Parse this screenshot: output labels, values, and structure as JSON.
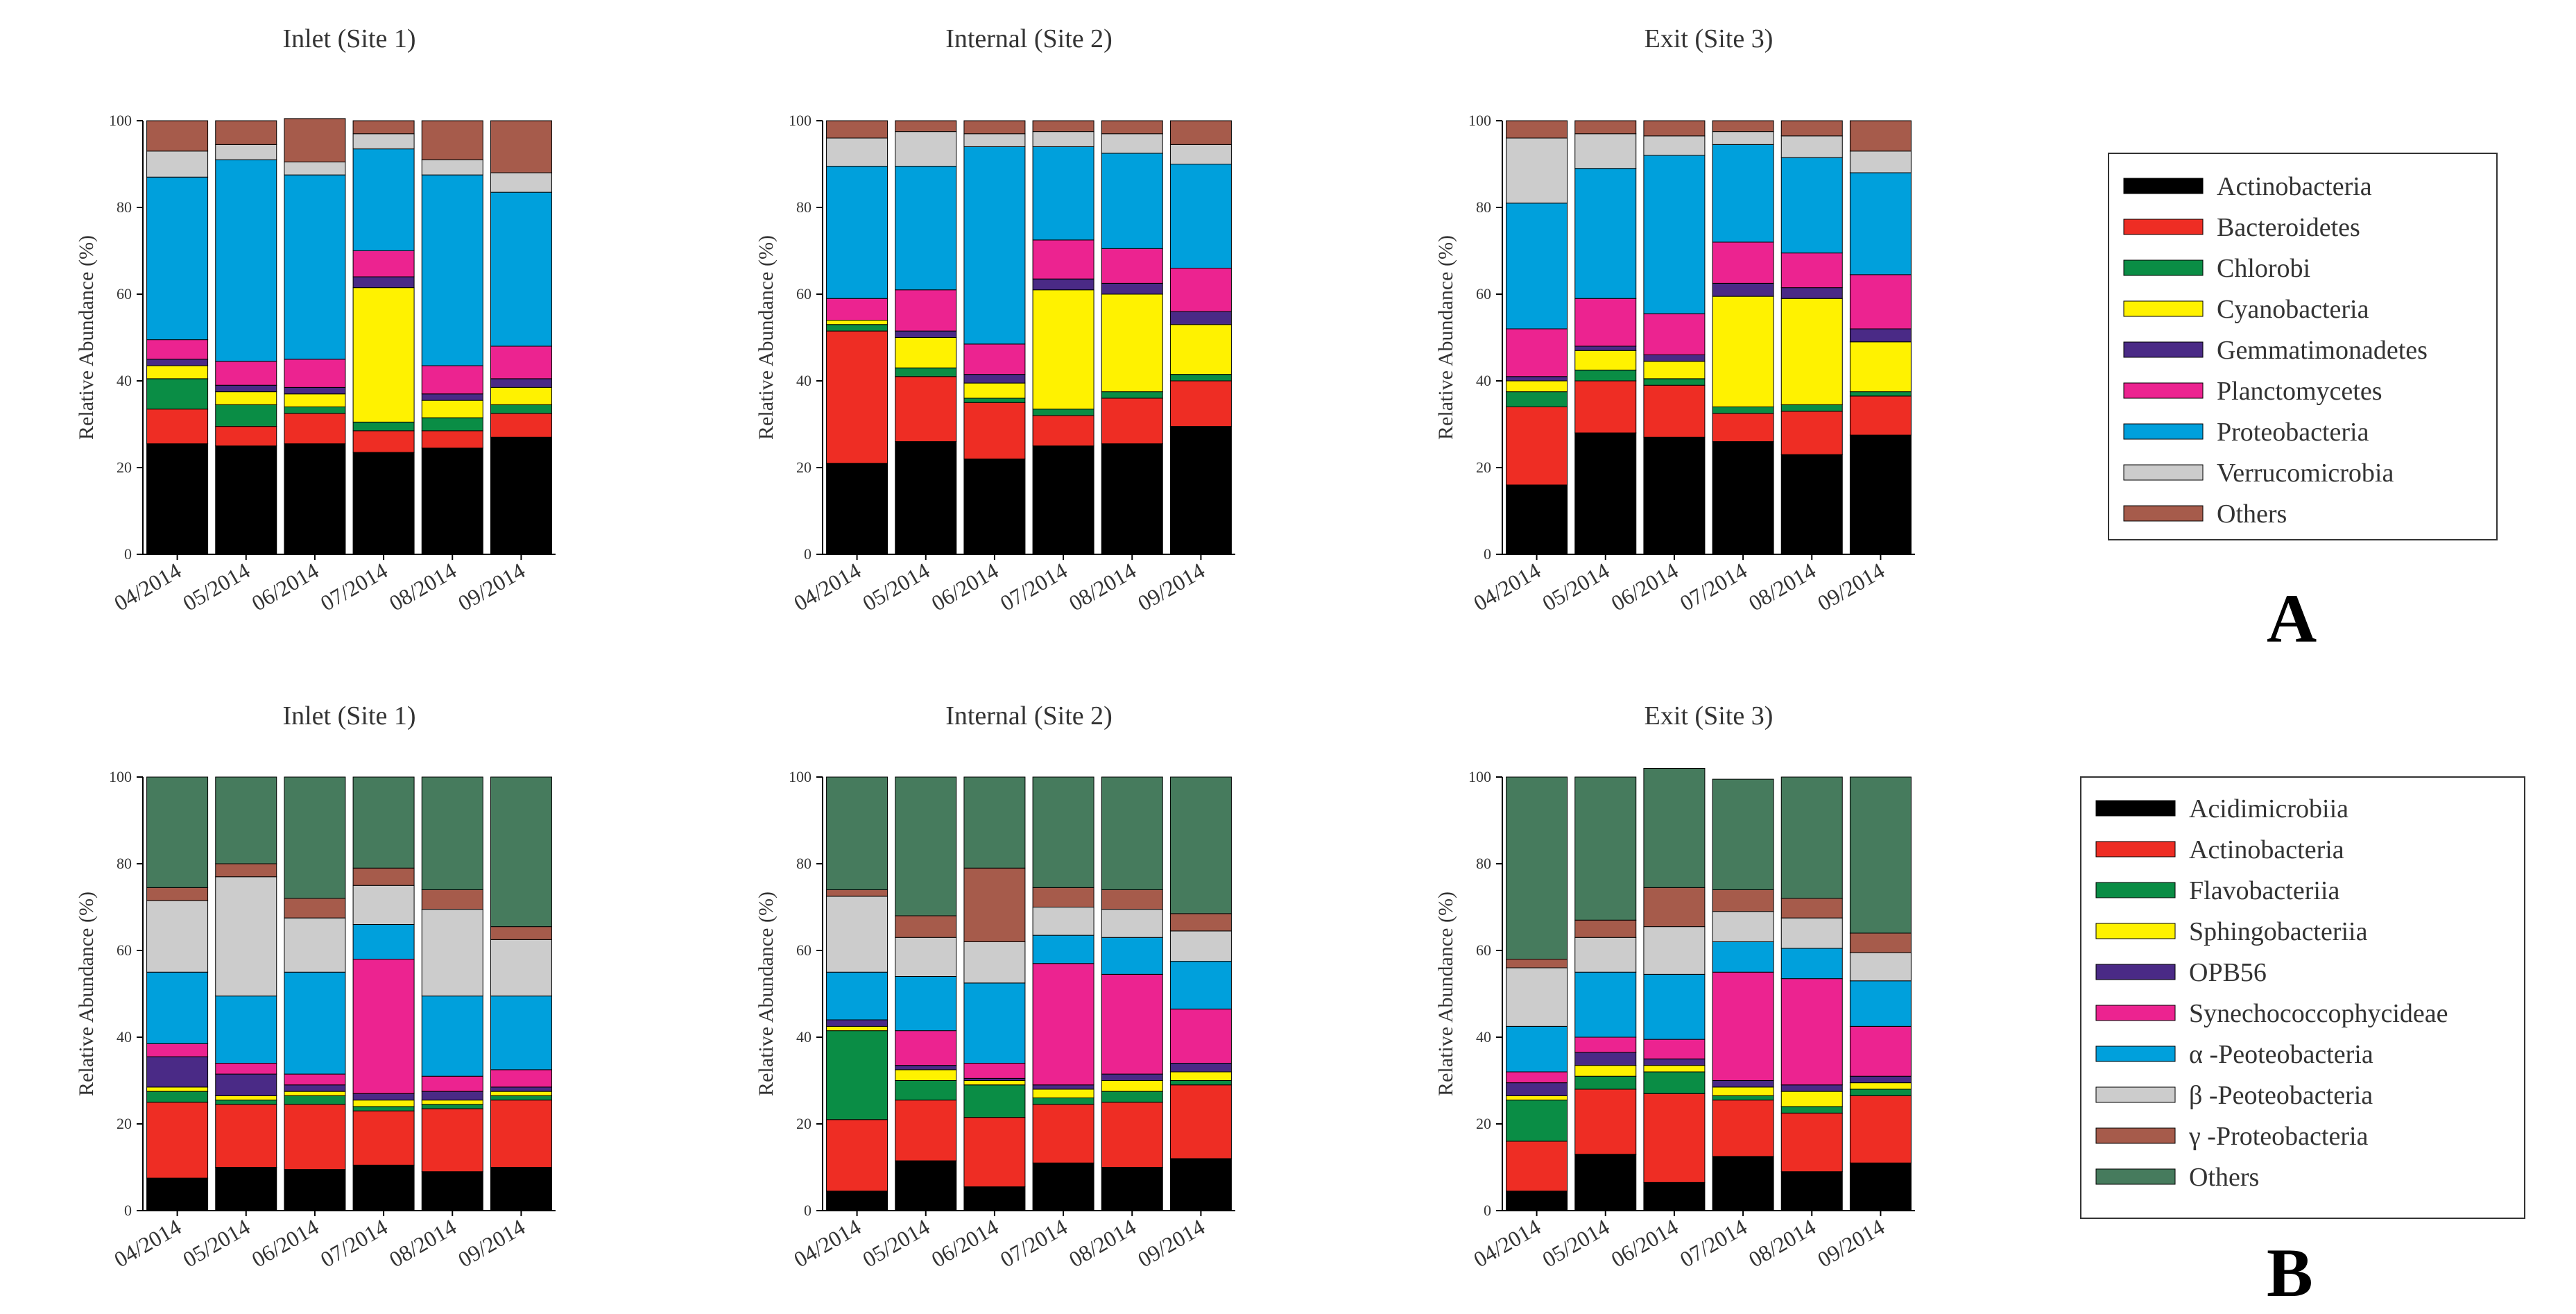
{
  "panel_labels": {
    "a": "A",
    "b": "B"
  },
  "colors": {
    "black": "#000000",
    "red": "#ee2d24",
    "green": "#0a8d45",
    "yellow": "#fff200",
    "purple": "#4a2a86",
    "pink": "#ec2390",
    "blue": "#00a0dc",
    "grey": "#cccccc",
    "brown": "#a65b4b",
    "darkgreen": "#467b5d"
  },
  "legends": {
    "A": {
      "position": "right",
      "entries": [
        {
          "label": "Actinobacteria",
          "color": "#000000"
        },
        {
          "label": "Bacteroidetes",
          "color": "#ee2d24"
        },
        {
          "label": "Chlorobi",
          "color": "#0a8d45"
        },
        {
          "label": "Cyanobacteria",
          "color": "#fff200"
        },
        {
          "label": "Gemmatimonadetes",
          "color": "#4a2a86"
        },
        {
          "label": "Planctomycetes",
          "color": "#ec2390"
        },
        {
          "label": "Proteobacteria",
          "color": "#00a0dc"
        },
        {
          "label": "Verrucomicrobia",
          "color": "#cccccc"
        },
        {
          "label": "Others",
          "color": "#a65b4b"
        }
      ]
    },
    "B": {
      "position": "right",
      "entries": [
        {
          "label": "Acidimicrobiia",
          "color": "#000000"
        },
        {
          "label": "Actinobacteria",
          "color": "#ee2d24"
        },
        {
          "label": "Flavobacteriia",
          "color": "#0a8d45"
        },
        {
          "label": "Sphingobacteriia",
          "color": "#fff200"
        },
        {
          "label": "OPB56",
          "color": "#4a2a86"
        },
        {
          "label": "Synechococcophycideae",
          "color": "#ec2390"
        },
        {
          "label": "α -Peoteobacteria",
          "color": "#00a0dc"
        },
        {
          "label": "β -Peoteobacteria",
          "color": "#cccccc"
        },
        {
          "label": "γ -Proteobacteria",
          "color": "#a65b4b"
        },
        {
          "label": "Others",
          "color": "#467b5d"
        }
      ]
    }
  },
  "chart_data": [
    {
      "type": "bar",
      "stacked": true,
      "row": "A",
      "title": "Inlet (Site 1)",
      "ylabel": "Relative Abundance (%)",
      "ylim": [
        0,
        100
      ],
      "yticks": [
        0,
        20,
        40,
        60,
        80,
        100
      ],
      "categories": [
        "04/2014",
        "05/2014",
        "06/2014",
        "07/2014",
        "08/2014",
        "09/2014"
      ],
      "series": [
        {
          "name": "Actinobacteria",
          "color": "#000000",
          "values": [
            25.5,
            25,
            25.5,
            23.5,
            24.5,
            27
          ]
        },
        {
          "name": "Bacteroidetes",
          "color": "#ee2d24",
          "values": [
            8,
            4.5,
            7,
            5,
            4,
            5.5
          ]
        },
        {
          "name": "Chlorobi",
          "color": "#0a8d45",
          "values": [
            7,
            5,
            1.5,
            2,
            3,
            2
          ]
        },
        {
          "name": "Cyanobacteria",
          "color": "#fff200",
          "values": [
            3,
            3,
            3,
            31,
            4,
            4
          ]
        },
        {
          "name": "Gemmatimonadetes",
          "color": "#4a2a86",
          "values": [
            1.5,
            1.5,
            1.5,
            2.5,
            1.5,
            2
          ]
        },
        {
          "name": "Planctomycetes",
          "color": "#ec2390",
          "values": [
            4.5,
            5.5,
            6.5,
            6,
            6.5,
            7.5
          ]
        },
        {
          "name": "Proteobacteria",
          "color": "#00a0dc",
          "values": [
            37.5,
            46.5,
            42.5,
            23.5,
            44,
            35.5
          ]
        },
        {
          "name": "Verrucomicrobia",
          "color": "#cccccc",
          "values": [
            6,
            3.5,
            3,
            3.5,
            3.5,
            4.5
          ]
        },
        {
          "name": "Others",
          "color": "#a65b4b",
          "values": [
            7,
            5.5,
            10,
            3,
            9,
            12
          ]
        }
      ]
    },
    {
      "type": "bar",
      "stacked": true,
      "row": "A",
      "title": "Internal (Site 2)",
      "ylabel": "Relative Abundance (%)",
      "ylim": [
        0,
        100
      ],
      "yticks": [
        0,
        20,
        40,
        60,
        80,
        100
      ],
      "categories": [
        "04/2014",
        "05/2014",
        "06/2014",
        "07/2014",
        "08/2014",
        "09/2014"
      ],
      "series": [
        {
          "name": "Actinobacteria",
          "color": "#000000",
          "values": [
            21,
            26,
            22,
            25,
            25.5,
            29.5
          ]
        },
        {
          "name": "Bacteroidetes",
          "color": "#ee2d24",
          "values": [
            30.5,
            15,
            13,
            7,
            10.5,
            10.5
          ]
        },
        {
          "name": "Chlorobi",
          "color": "#0a8d45",
          "values": [
            1.5,
            2,
            1,
            1.5,
            1.5,
            1.5
          ]
        },
        {
          "name": "Cyanobacteria",
          "color": "#fff200",
          "values": [
            1,
            7,
            3.5,
            27.5,
            22.5,
            11.5
          ]
        },
        {
          "name": "Gemmatimonadetes",
          "color": "#4a2a86",
          "values": [
            0,
            1.5,
            2,
            2.5,
            2.5,
            3
          ]
        },
        {
          "name": "Planctomycetes",
          "color": "#ec2390",
          "values": [
            5,
            9.5,
            7,
            9,
            8,
            10
          ]
        },
        {
          "name": "Proteobacteria",
          "color": "#00a0dc",
          "values": [
            30.5,
            28.5,
            45.5,
            21.5,
            22,
            24
          ]
        },
        {
          "name": "Verrucomicrobia",
          "color": "#cccccc",
          "values": [
            6.5,
            8,
            3,
            3.5,
            4.5,
            4.5
          ]
        },
        {
          "name": "Others",
          "color": "#a65b4b",
          "values": [
            4,
            2.5,
            3,
            2.5,
            3,
            5.5
          ]
        }
      ]
    },
    {
      "type": "bar",
      "stacked": true,
      "row": "A",
      "title": "Exit (Site 3)",
      "ylabel": "Relative Abundance (%)",
      "ylim": [
        0,
        100
      ],
      "yticks": [
        0,
        20,
        40,
        60,
        80,
        100
      ],
      "categories": [
        "04/2014",
        "05/2014",
        "06/2014",
        "07/2014",
        "08/2014",
        "09/2014"
      ],
      "series": [
        {
          "name": "Actinobacteria",
          "color": "#000000",
          "values": [
            16,
            28,
            27,
            26,
            23,
            27.5
          ]
        },
        {
          "name": "Bacteroidetes",
          "color": "#ee2d24",
          "values": [
            18,
            12,
            12,
            6.5,
            10,
            9
          ]
        },
        {
          "name": "Chlorobi",
          "color": "#0a8d45",
          "values": [
            3.5,
            2.5,
            1.5,
            1.5,
            1.5,
            1
          ]
        },
        {
          "name": "Cyanobacteria",
          "color": "#fff200",
          "values": [
            2.5,
            4.5,
            4,
            25.5,
            24.5,
            11.5
          ]
        },
        {
          "name": "Gemmatimonadetes",
          "color": "#4a2a86",
          "values": [
            1,
            1,
            1.5,
            3,
            2.5,
            3
          ]
        },
        {
          "name": "Planctomycetes",
          "color": "#ec2390",
          "values": [
            11,
            11,
            9.5,
            9.5,
            8,
            12.5
          ]
        },
        {
          "name": "Proteobacteria",
          "color": "#00a0dc",
          "values": [
            29,
            30,
            36.5,
            22.5,
            22,
            23.5
          ]
        },
        {
          "name": "Verrucomicrobia",
          "color": "#cccccc",
          "values": [
            15,
            8,
            4.5,
            3,
            5,
            5
          ]
        },
        {
          "name": "Others",
          "color": "#a65b4b",
          "values": [
            4,
            3,
            3.5,
            2.5,
            3.5,
            7
          ]
        }
      ]
    },
    {
      "type": "bar",
      "stacked": true,
      "row": "B",
      "title": "Inlet (Site 1)",
      "ylabel": "Relative Abundance (%)",
      "ylim": [
        0,
        100
      ],
      "yticks": [
        0,
        20,
        40,
        60,
        80,
        100
      ],
      "categories": [
        "04/2014",
        "05/2014",
        "06/2014",
        "07/2014",
        "08/2014",
        "09/2014"
      ],
      "series": [
        {
          "name": "Acidimicrobiia",
          "color": "#000000",
          "values": [
            7.5,
            10,
            9.5,
            10.5,
            9,
            10
          ]
        },
        {
          "name": "Actinobacteria",
          "color": "#ee2d24",
          "values": [
            17.5,
            14.5,
            15,
            12.5,
            14.5,
            15.5
          ]
        },
        {
          "name": "Flavobacteriia",
          "color": "#0a8d45",
          "values": [
            2.5,
            1,
            2,
            1,
            1,
            1
          ]
        },
        {
          "name": "Sphingobacteriia",
          "color": "#fff200",
          "values": [
            1,
            1,
            1,
            1.5,
            1,
            1
          ]
        },
        {
          "name": "OPB56",
          "color": "#4a2a86",
          "values": [
            7,
            5,
            1.5,
            1.5,
            2,
            1
          ]
        },
        {
          "name": "Synechococcophycideae",
          "color": "#ec2390",
          "values": [
            3,
            2.5,
            2.5,
            31,
            3.5,
            4
          ]
        },
        {
          "name": "α -Peoteobacteria",
          "color": "#00a0dc",
          "values": [
            16.5,
            15.5,
            23.5,
            8,
            18.5,
            17
          ]
        },
        {
          "name": "β -Peoteobacteria",
          "color": "#cccccc",
          "values": [
            16.5,
            27.5,
            12.5,
            9,
            20,
            13
          ]
        },
        {
          "name": "γ -Proteobacteria",
          "color": "#a65b4b",
          "values": [
            3,
            3,
            4.5,
            4,
            4.5,
            3
          ]
        },
        {
          "name": "Others",
          "color": "#467b5d",
          "values": [
            25.5,
            20,
            28,
            21,
            26,
            34.5
          ]
        }
      ]
    },
    {
      "type": "bar",
      "stacked": true,
      "row": "B",
      "title": "Internal (Site 2)",
      "ylabel": "Relative Abundance (%)",
      "ylim": [
        0,
        100
      ],
      "yticks": [
        0,
        20,
        40,
        60,
        80,
        100
      ],
      "categories": [
        "04/2014",
        "05/2014",
        "06/2014",
        "07/2014",
        "08/2014",
        "09/2014"
      ],
      "series": [
        {
          "name": "Acidimicrobiia",
          "color": "#000000",
          "values": [
            4.5,
            11.5,
            5.5,
            11,
            10,
            12
          ]
        },
        {
          "name": "Actinobacteria",
          "color": "#ee2d24",
          "values": [
            16.5,
            14,
            16,
            13.5,
            15,
            17
          ]
        },
        {
          "name": "Flavobacteriia",
          "color": "#0a8d45",
          "values": [
            20.5,
            4.5,
            7.5,
            1.5,
            2.5,
            1
          ]
        },
        {
          "name": "Sphingobacteriia",
          "color": "#fff200",
          "values": [
            1,
            2.5,
            1,
            2,
            2.5,
            2
          ]
        },
        {
          "name": "OPB56",
          "color": "#4a2a86",
          "values": [
            1.5,
            1,
            0.5,
            1,
            1.5,
            2
          ]
        },
        {
          "name": "Synechococcophycideae",
          "color": "#ec2390",
          "values": [
            0,
            8,
            3.5,
            28,
            23,
            12.5
          ]
        },
        {
          "name": "α -Peoteobacteria",
          "color": "#00a0dc",
          "values": [
            11,
            12.5,
            18.5,
            6.5,
            8.5,
            11
          ]
        },
        {
          "name": "β -Peoteobacteria",
          "color": "#cccccc",
          "values": [
            17.5,
            9,
            9.5,
            6.5,
            6.5,
            7
          ]
        },
        {
          "name": "γ -Proteobacteria",
          "color": "#a65b4b",
          "values": [
            1.5,
            5,
            17,
            4.5,
            4.5,
            4
          ]
        },
        {
          "name": "Others",
          "color": "#467b5d",
          "values": [
            26,
            32,
            21,
            25.5,
            26,
            31.5
          ]
        }
      ]
    },
    {
      "type": "bar",
      "stacked": true,
      "row": "B",
      "title": "Exit (Site 3)",
      "ylabel": "Relative Abundance (%)",
      "ylim": [
        0,
        100
      ],
      "yticks": [
        0,
        20,
        40,
        60,
        80,
        100
      ],
      "categories": [
        "04/2014",
        "05/2014",
        "06/2014",
        "07/2014",
        "08/2014",
        "09/2014"
      ],
      "series": [
        {
          "name": "Acidimicrobiia",
          "color": "#000000",
          "values": [
            4.5,
            13,
            6.5,
            12.5,
            9,
            11
          ]
        },
        {
          "name": "Actinobacteria",
          "color": "#ee2d24",
          "values": [
            11.5,
            15,
            20.5,
            13,
            13.5,
            15.5
          ]
        },
        {
          "name": "Flavobacteriia",
          "color": "#0a8d45",
          "values": [
            9.5,
            3,
            5,
            1,
            1.5,
            1.5
          ]
        },
        {
          "name": "Sphingobacteriia",
          "color": "#fff200",
          "values": [
            1,
            2.5,
            1.5,
            2,
            3.5,
            1.5
          ]
        },
        {
          "name": "OPB56",
          "color": "#4a2a86",
          "values": [
            3,
            3,
            1.5,
            1.5,
            1.5,
            1.5
          ]
        },
        {
          "name": "Synechococcophycideae",
          "color": "#ec2390",
          "values": [
            2.5,
            3.5,
            4.5,
            25,
            24.5,
            11.5
          ]
        },
        {
          "name": "α -Peoteobacteria",
          "color": "#00a0dc",
          "values": [
            10.5,
            15,
            15,
            7,
            7,
            10.5
          ]
        },
        {
          "name": "β -Peoteobacteria",
          "color": "#cccccc",
          "values": [
            13.5,
            8,
            11,
            7,
            7,
            6.5
          ]
        },
        {
          "name": "γ -Proteobacteria",
          "color": "#a65b4b",
          "values": [
            2,
            4,
            9,
            5,
            4.5,
            4.5
          ]
        },
        {
          "name": "Others",
          "color": "#467b5d",
          "values": [
            42,
            33,
            27.5,
            25.5,
            28,
            36
          ]
        }
      ]
    }
  ]
}
